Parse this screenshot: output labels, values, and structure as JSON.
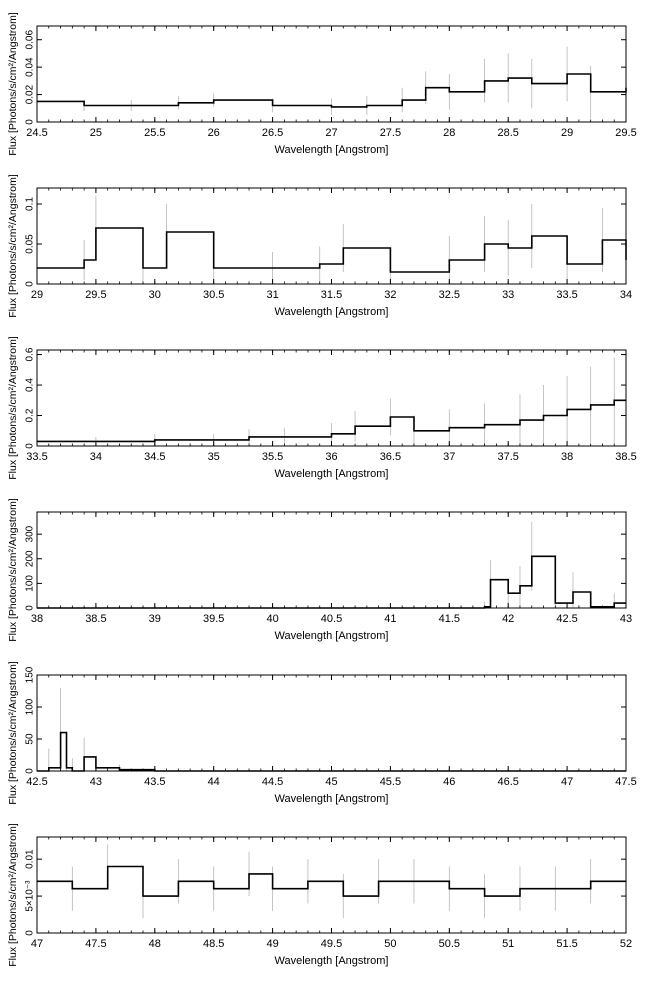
{
  "figure": {
    "panels_count": 6
  },
  "chart_data": [
    {
      "type": "step",
      "xlabel": "Wavelength [Angstrom]",
      "ylabel": "Flux [Photons/s/cm²/Angstrom]",
      "xlim": [
        24.5,
        29.5
      ],
      "ylim": [
        0,
        0.07
      ],
      "xticks": [
        24.5,
        25,
        25.5,
        26,
        26.5,
        27,
        27.5,
        28,
        28.5,
        29,
        29.5
      ],
      "xtick_labels": [
        "24.5",
        "25",
        "25.5",
        "26",
        "26.5",
        "27",
        "27.5",
        "28",
        "28.5",
        "29",
        "29.5"
      ],
      "yticks": [
        0,
        0.02,
        0.04,
        0.06
      ],
      "ytick_labels": [
        "0",
        "0.02",
        "0.04",
        "0.06"
      ],
      "series": [
        {
          "x": [
            24.5,
            24.9,
            25.3,
            25.7,
            26.0,
            26.5,
            27.0,
            27.3,
            27.6,
            27.8,
            28.0,
            28.3,
            28.5,
            28.7,
            29.0,
            29.2,
            29.5
          ],
          "y": [
            0.015,
            0.012,
            0.012,
            0.014,
            0.016,
            0.012,
            0.011,
            0.012,
            0.016,
            0.025,
            0.022,
            0.03,
            0.032,
            0.028,
            0.035,
            0.022,
            0.025
          ],
          "err": [
            0.004,
            0.004,
            0.004,
            0.005,
            0.005,
            0.005,
            0.006,
            0.007,
            0.009,
            0.012,
            0.013,
            0.016,
            0.018,
            0.018,
            0.02,
            0.019,
            0.02
          ]
        }
      ]
    },
    {
      "type": "step",
      "xlabel": "Wavelength [Angstrom]",
      "ylabel": "Flux [Photons/s/cm²/Angstrom]",
      "xlim": [
        29,
        34
      ],
      "ylim": [
        0,
        0.12
      ],
      "xticks": [
        29,
        29.5,
        30,
        30.5,
        31,
        31.5,
        32,
        32.5,
        33,
        33.5,
        34
      ],
      "xtick_labels": [
        "29",
        "29.5",
        "30",
        "30.5",
        "31",
        "31.5",
        "32",
        "32.5",
        "33",
        "33.5",
        "34"
      ],
      "yticks": [
        0,
        0.05,
        0.1
      ],
      "ytick_labels": [
        "0",
        "0.05",
        "0.1"
      ],
      "series": [
        {
          "x": [
            29.0,
            29.4,
            29.5,
            29.9,
            30.1,
            30.5,
            31.0,
            31.4,
            31.6,
            32.0,
            32.5,
            32.8,
            33.0,
            33.2,
            33.5,
            33.8,
            34.0
          ],
          "y": [
            0.02,
            0.03,
            0.07,
            0.02,
            0.065,
            0.02,
            0.02,
            0.025,
            0.045,
            0.015,
            0.03,
            0.05,
            0.045,
            0.06,
            0.025,
            0.055,
            0.03
          ],
          "err": [
            0.02,
            0.025,
            0.04,
            0.02,
            0.035,
            0.02,
            0.02,
            0.022,
            0.03,
            0.02,
            0.03,
            0.035,
            0.035,
            0.04,
            0.03,
            0.04,
            0.035
          ]
        }
      ]
    },
    {
      "type": "step",
      "xlabel": "Wavelength [Angstrom]",
      "ylabel": "Flux [Photons/s/cm²/Angstrom]",
      "xlim": [
        33.5,
        38.5
      ],
      "ylim": [
        0,
        0.63
      ],
      "xticks": [
        33.5,
        34,
        34.5,
        35,
        35.5,
        36,
        36.5,
        37,
        37.5,
        38,
        38.5
      ],
      "xtick_labels": [
        "33.5",
        "34",
        "34.5",
        "35",
        "35.5",
        "36",
        "36.5",
        "37",
        "37.5",
        "38",
        "38.5"
      ],
      "yticks": [
        0,
        0.2,
        0.4,
        0.6
      ],
      "ytick_labels": [
        "0",
        "0.2",
        "0.4",
        "0.6"
      ],
      "series": [
        {
          "x": [
            33.5,
            34.0,
            34.5,
            35.0,
            35.3,
            35.6,
            36.0,
            36.2,
            36.5,
            36.7,
            37.0,
            37.3,
            37.6,
            37.8,
            38.0,
            38.2,
            38.4
          ],
          "y": [
            0.03,
            0.03,
            0.04,
            0.04,
            0.06,
            0.06,
            0.08,
            0.13,
            0.19,
            0.1,
            0.12,
            0.14,
            0.17,
            0.2,
            0.24,
            0.27,
            0.3
          ],
          "err": [
            0.03,
            0.03,
            0.04,
            0.04,
            0.05,
            0.06,
            0.07,
            0.1,
            0.12,
            0.1,
            0.12,
            0.14,
            0.17,
            0.2,
            0.22,
            0.25,
            0.28
          ]
        }
      ]
    },
    {
      "type": "step",
      "xlabel": "Wavelength [Angstrom]",
      "ylabel": "Flux [Photons/s/cm²/Angstrom]",
      "xlim": [
        38,
        43
      ],
      "ylim": [
        0,
        390
      ],
      "xticks": [
        38,
        38.5,
        39,
        39.5,
        40,
        40.5,
        41,
        41.5,
        42,
        42.5,
        43
      ],
      "xtick_labels": [
        "38",
        "38.5",
        "39",
        "39.5",
        "40",
        "40.5",
        "41",
        "41.5",
        "42",
        "42.5",
        "43"
      ],
      "yticks": [
        0,
        100,
        200,
        300
      ],
      "ytick_labels": [
        "0",
        "100",
        "200",
        "300"
      ],
      "series": [
        {
          "x": [
            38.0,
            38.5,
            39.0,
            39.5,
            40.0,
            40.5,
            41.0,
            41.5,
            41.8,
            41.85,
            42.0,
            42.1,
            42.2,
            42.4,
            42.55,
            42.7,
            42.9
          ],
          "y": [
            0,
            0,
            0,
            0,
            0,
            0,
            0,
            0,
            5,
            115,
            60,
            90,
            210,
            20,
            65,
            5,
            20
          ],
          "err": [
            2,
            2,
            2,
            2,
            5,
            5,
            8,
            10,
            20,
            80,
            60,
            80,
            140,
            60,
            80,
            30,
            40
          ]
        }
      ]
    },
    {
      "type": "step",
      "xlabel": "Wavelength [Angstrom]",
      "ylabel": "Flux [Photons/s/cm²/Angstrom]",
      "xlim": [
        42.5,
        47.5
      ],
      "ylim": [
        0,
        150
      ],
      "xticks": [
        42.5,
        43,
        43.5,
        44,
        44.5,
        45,
        45.5,
        46,
        46.5,
        47,
        47.5
      ],
      "xtick_labels": [
        "42.5",
        "43",
        "43.5",
        "44",
        "44.5",
        "45",
        "45.5",
        "46",
        "46.5",
        "47",
        "47.5"
      ],
      "yticks": [
        0,
        50,
        100,
        150
      ],
      "ytick_labels": [
        "0",
        "50",
        "100",
        "150"
      ],
      "series": [
        {
          "x": [
            42.5,
            42.6,
            42.7,
            42.75,
            42.8,
            42.9,
            43.0,
            43.2,
            43.5,
            44.0,
            45.0,
            46.0,
            47.0,
            47.5
          ],
          "y": [
            0,
            5,
            60,
            5,
            0,
            22,
            5,
            2,
            0,
            0,
            0,
            0,
            0,
            0
          ],
          "err": [
            5,
            30,
            70,
            40,
            20,
            30,
            15,
            8,
            3,
            2,
            2,
            2,
            2,
            2
          ]
        }
      ]
    },
    {
      "type": "step",
      "xlabel": "Wavelength [Angstrom]",
      "ylabel": "Flux [Photons/s/cm²/Angstrom]",
      "xlim": [
        47,
        52
      ],
      "ylim": [
        0,
        0.013
      ],
      "xticks": [
        47,
        47.5,
        48,
        48.5,
        49,
        49.5,
        50,
        50.5,
        51,
        51.5,
        52
      ],
      "xtick_labels": [
        "47",
        "47.5",
        "48",
        "48.5",
        "49",
        "49.5",
        "50",
        "50.5",
        "51",
        "51.5",
        "52"
      ],
      "yticks": [
        0,
        0.005,
        0.01
      ],
      "ytick_labels": [
        "0",
        "5×10⁻³",
        "0.01"
      ],
      "series": [
        {
          "x": [
            47.0,
            47.3,
            47.6,
            47.9,
            48.2,
            48.5,
            48.8,
            49.0,
            49.3,
            49.6,
            49.9,
            50.2,
            50.5,
            50.8,
            51.1,
            51.4,
            51.7,
            52.0
          ],
          "y": [
            0.007,
            0.006,
            0.009,
            0.005,
            0.007,
            0.006,
            0.008,
            0.006,
            0.007,
            0.005,
            0.007,
            0.007,
            0.006,
            0.005,
            0.006,
            0.006,
            0.007,
            0.007
          ],
          "err": [
            0.003,
            0.003,
            0.003,
            0.003,
            0.003,
            0.003,
            0.003,
            0.003,
            0.003,
            0.003,
            0.003,
            0.003,
            0.003,
            0.003,
            0.003,
            0.003,
            0.003,
            0.003
          ]
        }
      ]
    }
  ]
}
